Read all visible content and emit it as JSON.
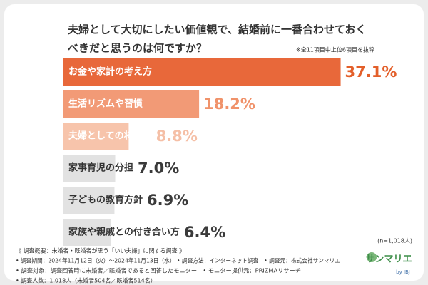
{
  "chart_data": {
    "type": "bar",
    "title_lines": [
      "夫婦として大切にしたい価値観で、結婚前に一番合わせておく",
      "べきだと思うのは何ですか？"
    ],
    "note": "※全11項目中上位6項目を抜粋",
    "categories": [
      "お金や家計の考え方",
      "生活リズムや習慣",
      "夫婦としての将来像",
      "家事育児の分担",
      "子どもの教育方針",
      "家族や親戚との付き合い方"
    ],
    "values": [
      37.1,
      18.2,
      8.8,
      7.0,
      6.9,
      6.4
    ],
    "value_labels": [
      "37.1%",
      "18.2%",
      "8.8%",
      "7.0%",
      "6.9%",
      "6.4%"
    ],
    "colors": [
      "#e8683a",
      "#f29a76",
      "#f7c4ab",
      "#e2e2e2",
      "#e2e2e2",
      "#e2e2e2"
    ],
    "label_colors": [
      "#ffffff",
      "#ffffff",
      "#ffffff",
      "#333333",
      "#333333",
      "#333333"
    ],
    "value_colors": [
      "#e35f2a",
      "#f0926a",
      "#f5bfa6",
      "#3a3a3a",
      "#3a3a3a",
      "#3a3a3a"
    ],
    "sample": "(n=1,018人)",
    "footer": [
      "《 調査概要：未婚者・既婚者が思う「いい夫婦」に関する調査 》",
      "• 調査期間：2024年11月12日（火）〜2024年11月13日（水） • 調査方法：インターネット調査　• 調査元：株式会社サンマリエ",
      "• 調査対象：調査回答時に未婚者／既婚者であると回答したモニター　• モニター提供元：PRIZMAリサーチ",
      "• 調査人数：1,018人（未婚者504名／既婚者514名）"
    ],
    "logo": "サンマリエ",
    "logo_sub": "by IBJ"
  }
}
